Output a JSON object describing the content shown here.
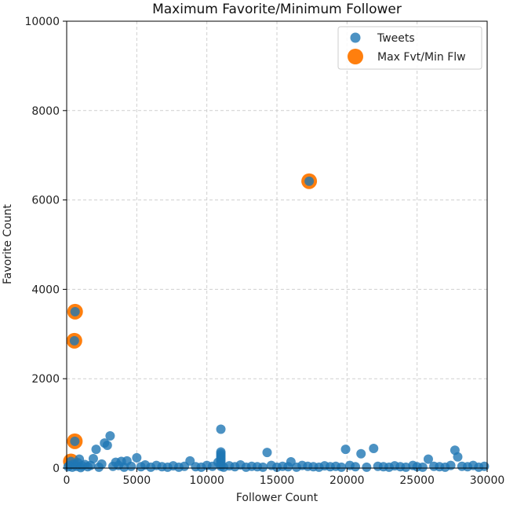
{
  "chart_data": {
    "type": "scatter",
    "title": "Maximum Favorite/Minimum Follower",
    "xlabel": "Follower Count",
    "ylabel": "Favorite Count",
    "xlim": [
      0,
      30000
    ],
    "ylim": [
      0,
      10000
    ],
    "xticks": [
      0,
      5000,
      10000,
      15000,
      20000,
      25000,
      30000
    ],
    "yticks": [
      0,
      2000,
      4000,
      6000,
      8000,
      10000
    ],
    "grid": true,
    "legend_position": "top-right",
    "colors": {
      "tweets": "#1f77b4",
      "highlight": "#ff7f0e"
    },
    "series": [
      {
        "name": "Tweets",
        "points": [
          [
            100,
            30
          ],
          [
            200,
            60
          ],
          [
            300,
            150
          ],
          [
            400,
            20
          ],
          [
            500,
            90
          ],
          [
            600,
            3500
          ],
          [
            550,
            2850
          ],
          [
            580,
            600
          ],
          [
            700,
            40
          ],
          [
            800,
            120
          ],
          [
            900,
            200
          ],
          [
            1000,
            10
          ],
          [
            1100,
            50
          ],
          [
            1300,
            80
          ],
          [
            1500,
            30
          ],
          [
            1700,
            60
          ],
          [
            1900,
            210
          ],
          [
            2100,
            420
          ],
          [
            2300,
            20
          ],
          [
            2500,
            90
          ],
          [
            2700,
            560
          ],
          [
            2900,
            510
          ],
          [
            3100,
            720
          ],
          [
            3300,
            40
          ],
          [
            3500,
            130
          ],
          [
            3700,
            60
          ],
          [
            3900,
            150
          ],
          [
            4100,
            20
          ],
          [
            4300,
            160
          ],
          [
            4600,
            40
          ],
          [
            5000,
            230
          ],
          [
            5300,
            30
          ],
          [
            5600,
            70
          ],
          [
            6000,
            20
          ],
          [
            6400,
            60
          ],
          [
            6800,
            30
          ],
          [
            7200,
            20
          ],
          [
            7600,
            50
          ],
          [
            8000,
            20
          ],
          [
            8400,
            40
          ],
          [
            8800,
            160
          ],
          [
            9200,
            30
          ],
          [
            9600,
            20
          ],
          [
            10000,
            60
          ],
          [
            10400,
            40
          ],
          [
            10800,
            130
          ],
          [
            11000,
            870
          ],
          [
            11000,
            360
          ],
          [
            11000,
            320
          ],
          [
            11000,
            280
          ],
          [
            11000,
            240
          ],
          [
            11000,
            200
          ],
          [
            11000,
            160
          ],
          [
            11000,
            120
          ],
          [
            11000,
            80
          ],
          [
            11000,
            40
          ],
          [
            11200,
            20
          ],
          [
            11600,
            50
          ],
          [
            12000,
            30
          ],
          [
            12400,
            70
          ],
          [
            12800,
            20
          ],
          [
            13200,
            40
          ],
          [
            13600,
            30
          ],
          [
            14000,
            20
          ],
          [
            14300,
            350
          ],
          [
            14600,
            60
          ],
          [
            15000,
            20
          ],
          [
            15400,
            40
          ],
          [
            15800,
            30
          ],
          [
            16000,
            140
          ],
          [
            16400,
            20
          ],
          [
            16800,
            60
          ],
          [
            17200,
            40
          ],
          [
            17300,
            6420
          ],
          [
            17600,
            30
          ],
          [
            18000,
            20
          ],
          [
            18400,
            50
          ],
          [
            18800,
            30
          ],
          [
            19200,
            40
          ],
          [
            19600,
            20
          ],
          [
            19900,
            420
          ],
          [
            20200,
            60
          ],
          [
            20600,
            30
          ],
          [
            21000,
            320
          ],
          [
            21400,
            20
          ],
          [
            21900,
            440
          ],
          [
            22200,
            40
          ],
          [
            22600,
            30
          ],
          [
            23000,
            20
          ],
          [
            23400,
            50
          ],
          [
            23800,
            30
          ],
          [
            24200,
            20
          ],
          [
            24700,
            60
          ],
          [
            25000,
            30
          ],
          [
            25400,
            20
          ],
          [
            25800,
            200
          ],
          [
            26200,
            40
          ],
          [
            26600,
            30
          ],
          [
            27000,
            20
          ],
          [
            27400,
            60
          ],
          [
            27700,
            400
          ],
          [
            27900,
            250
          ],
          [
            28200,
            40
          ],
          [
            28600,
            30
          ],
          [
            29000,
            60
          ],
          [
            29400,
            20
          ],
          [
            29800,
            40
          ]
        ]
      },
      {
        "name": "Max Fvt/Min Flw",
        "points": [
          [
            17300,
            6420
          ],
          [
            600,
            3500
          ],
          [
            550,
            2850
          ],
          [
            580,
            600
          ],
          [
            300,
            150
          ]
        ]
      }
    ]
  }
}
